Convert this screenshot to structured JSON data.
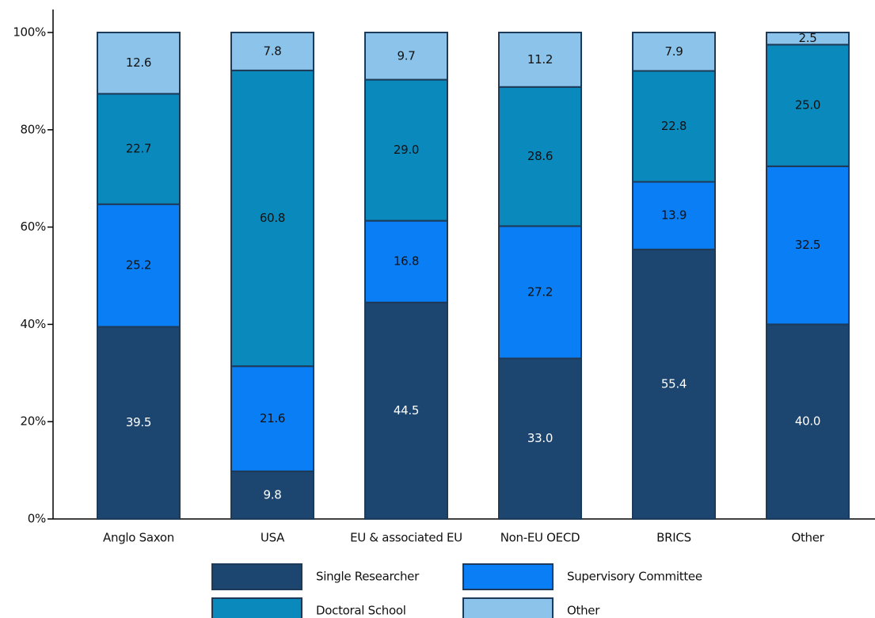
{
  "chart_data": {
    "type": "stacked_bar",
    "categories": [
      "Anglo Saxon",
      "USA",
      "EU & associated EU",
      "Non-EU OECD",
      "BRICS",
      "Other"
    ],
    "series": [
      {
        "name": "Single Researcher",
        "color": "#1c4670",
        "label_color": "#ffffff",
        "values": [
          39.5,
          9.8,
          44.5,
          33.0,
          55.4,
          40.0
        ],
        "value_labels": [
          "39.5",
          "9.8",
          "44.5",
          "33.0",
          "55.4",
          "40.0"
        ]
      },
      {
        "name": "Supervisory Committee",
        "color": "#0a7ef4",
        "label_color": "#111111",
        "values": [
          25.2,
          21.6,
          16.8,
          27.2,
          13.9,
          32.5
        ],
        "value_labels": [
          "25.2",
          "21.6",
          "16.8",
          "27.2",
          "13.9",
          "32.5"
        ]
      },
      {
        "name": "Doctoral School",
        "color": "#0a89bd",
        "label_color": "#111111",
        "values": [
          22.7,
          60.8,
          29.0,
          28.6,
          22.8,
          25.0
        ],
        "value_labels": [
          "22.7",
          "60.8",
          "29.0",
          "28.6",
          "22.8",
          "25.0"
        ]
      },
      {
        "name": "Other",
        "color": "#8bc3ea",
        "label_color": "#111111",
        "values": [
          12.6,
          7.8,
          9.7,
          11.2,
          7.9,
          2.5
        ],
        "value_labels": [
          "12.6",
          "7.8",
          "9.7",
          "11.2",
          "7.9",
          "2.5"
        ]
      }
    ],
    "ylim": [
      0,
      100
    ],
    "yticks": [
      {
        "value": 0,
        "label": "0%"
      },
      {
        "value": 20,
        "label": "20%"
      },
      {
        "value": 40,
        "label": "40%"
      },
      {
        "value": 60,
        "label": "60%"
      },
      {
        "value": 80,
        "label": "80%"
      },
      {
        "value": 100,
        "label": "100%"
      }
    ],
    "grid": false,
    "legend": "bottom"
  }
}
